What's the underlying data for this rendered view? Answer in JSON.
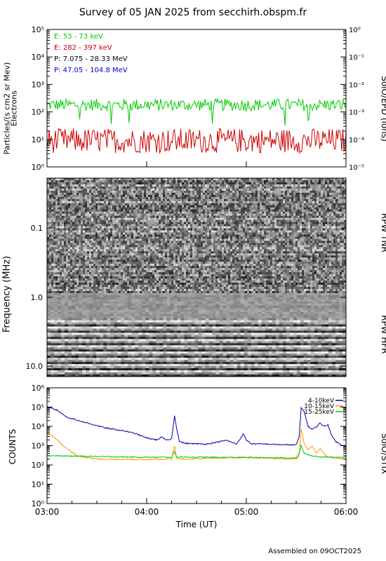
{
  "title": "Survey of 05 JAN 2025 from secchirh.obspm.fr",
  "footer": "Assembled on 09OCT2025",
  "colors": {
    "electrons_low": "#00cc00",
    "electrons_high": "#cc0000",
    "protons_low": "#000000",
    "protons_high": "#0000cc",
    "stix_4_10": "#0000aa",
    "stix_10_15": "#ff9900",
    "stix_15_25": "#00cc00"
  },
  "chart_data": [
    {
      "type": "line",
      "panel": "epd",
      "ylabel_line1": "Particles/(s cm2 sr Mev)",
      "ylabel_line2": "Electrons",
      "right_label": "SolO/EPD (ions)",
      "y_scale": "log",
      "ylim": [
        1,
        100000
      ],
      "y_ticks": [
        "10⁰",
        "10¹",
        "10²",
        "10³",
        "10⁴",
        "10⁵"
      ],
      "y2_scale": "log",
      "y2lim": [
        1e-05,
        1
      ],
      "y2_ticks": [
        "10⁻⁵",
        "10⁻⁴",
        "10⁻³",
        "10⁻²",
        "10⁻¹",
        "10⁰"
      ],
      "legend_position": "top-left",
      "series": [
        {
          "name": "E: 53 - 73 keV",
          "color_key": "electrons_low",
          "typical": 200,
          "range": [
            100,
            450
          ]
        },
        {
          "name": "E: 282 - 397 keV",
          "color_key": "electrons_high",
          "typical": 10,
          "range": [
            3,
            35
          ]
        },
        {
          "name": "P: 7.075 - 28.33 MeV",
          "color_key": "protons_low"
        },
        {
          "name": "P: 47.05 - 104.8 MeV",
          "color_key": "protons_high"
        }
      ]
    },
    {
      "type": "heatmap",
      "panel": "rpw",
      "ylabel": "Frequency (MHz)",
      "y_scale": "log",
      "y_ticks": [
        "0.1",
        "1.0",
        "10.0"
      ],
      "upper_label": "RPW TNR",
      "lower_label": "RPW HFR",
      "colormap": "grayscale"
    },
    {
      "type": "line",
      "panel": "stix",
      "ylabel": "COUNTS",
      "right_label": "SolO/STIX",
      "y_scale": "log",
      "ylim": [
        1,
        1000000
      ],
      "y_ticks": [
        "10⁰",
        "10¹",
        "10²",
        "10³",
        "10⁴",
        "10⁵",
        "10⁶"
      ],
      "x_ticks": [
        "03:00",
        "04:00",
        "05:00",
        "06:00"
      ],
      "xlabel": "Time (UT)",
      "legend_position": "top-right",
      "series": [
        {
          "name": "4-10keV",
          "color_key": "stix_4_10",
          "x": [
            0.0,
            0.1,
            0.2,
            0.4,
            0.6,
            0.8,
            0.9,
            1.0,
            1.1,
            1.15,
            1.2,
            1.25,
            1.28,
            1.3,
            1.33,
            1.4,
            1.6,
            1.7,
            1.8,
            1.9,
            1.97,
            2.0,
            2.05,
            2.2,
            2.4,
            2.5,
            2.53,
            2.55,
            2.58,
            2.62,
            2.66,
            2.7,
            2.74,
            2.78,
            2.82,
            2.86,
            2.9,
            2.95,
            3.0
          ],
          "values": [
            100000,
            70000,
            30000,
            15000,
            8000,
            5500,
            4000,
            2500,
            2000,
            2700,
            1900,
            2300,
            35000,
            8000,
            1600,
            1300,
            1200,
            1500,
            1900,
            1200,
            4000,
            2000,
            1250,
            1200,
            1100,
            1100,
            3000,
            90000,
            60000,
            10000,
            7000,
            9000,
            15000,
            10000,
            12000,
            3000,
            1600,
            1100,
            1000
          ]
        },
        {
          "name": "10-15keV",
          "color_key": "stix_10_15",
          "x": [
            0.0,
            0.1,
            0.2,
            0.3,
            0.4,
            0.5,
            1.0,
            1.25,
            1.28,
            1.3,
            1.35,
            2.0,
            2.5,
            2.53,
            2.55,
            2.58,
            2.62,
            2.66,
            2.7,
            2.74,
            2.78,
            2.82,
            3.0
          ],
          "values": [
            5000,
            2000,
            700,
            300,
            240,
            200,
            190,
            200,
            1000,
            220,
            200,
            250,
            200,
            300,
            8000,
            1200,
            600,
            1000,
            400,
            700,
            400,
            250,
            210
          ]
        },
        {
          "name": "15-25keV",
          "color_key": "stix_15_25",
          "x": [
            0.0,
            1.0,
            1.25,
            1.28,
            1.3,
            2.0,
            2.5,
            2.53,
            2.55,
            2.58,
            2.65,
            2.75,
            3.0
          ],
          "values": [
            300,
            250,
            250,
            500,
            260,
            240,
            230,
            400,
            1000,
            400,
            300,
            260,
            250
          ]
        }
      ]
    }
  ]
}
